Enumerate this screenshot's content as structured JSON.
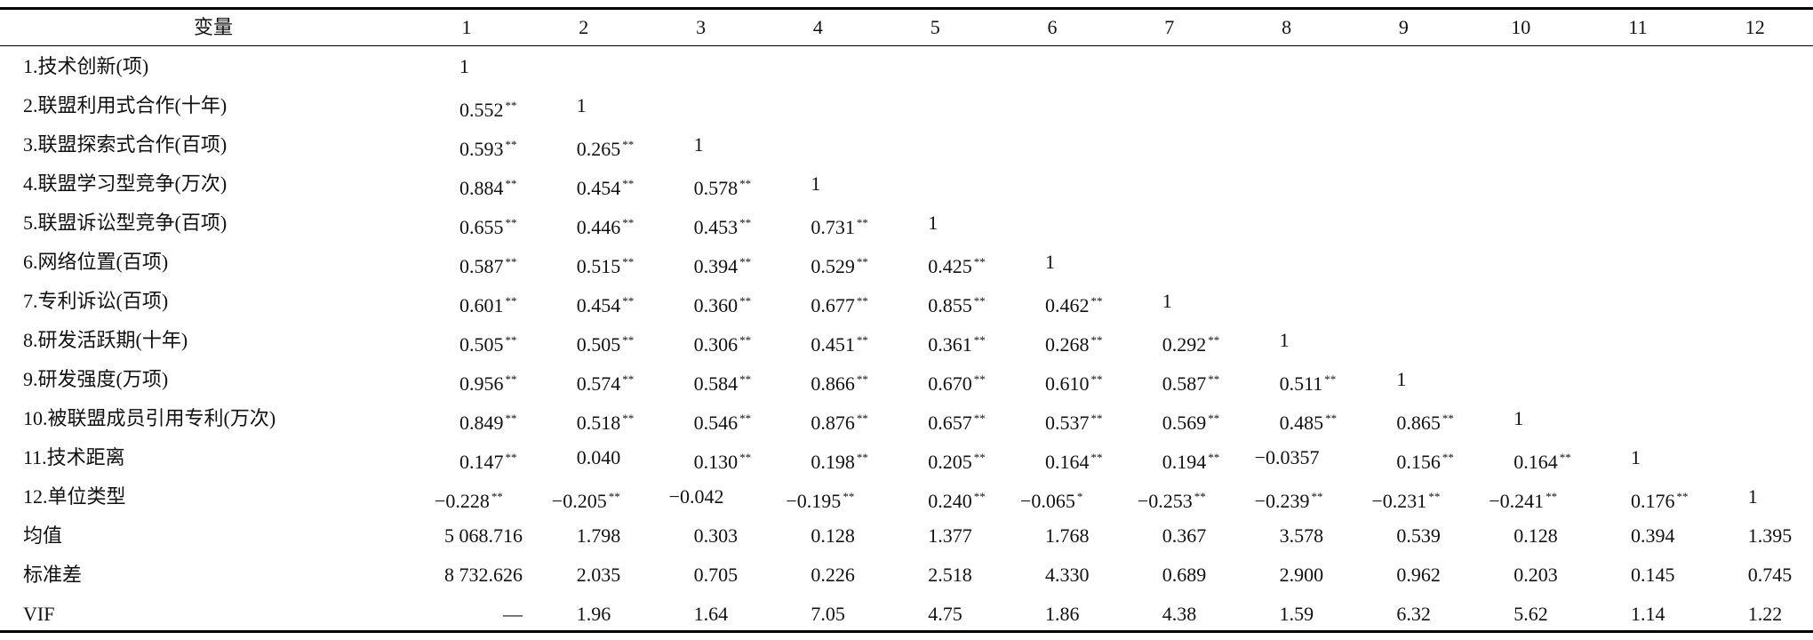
{
  "table": {
    "header": [
      "变量",
      "1",
      "2",
      "3",
      "4",
      "5",
      "6",
      "7",
      "8",
      "9",
      "10",
      "11",
      "12"
    ],
    "rows": [
      {
        "label": "1.技术创新(项)",
        "cells": [
          "1"
        ]
      },
      {
        "label": "2.联盟利用式合作(十年)",
        "cells": [
          {
            "v": "0.552",
            "sig": "**"
          },
          "1"
        ]
      },
      {
        "label": "3.联盟探索式合作(百项)",
        "cells": [
          {
            "v": "0.593",
            "sig": "**"
          },
          {
            "v": "0.265",
            "sig": "**"
          },
          "1"
        ]
      },
      {
        "label": "4.联盟学习型竞争(万次)",
        "cells": [
          {
            "v": "0.884",
            "sig": "**"
          },
          {
            "v": "0.454",
            "sig": "**"
          },
          {
            "v": "0.578",
            "sig": "**"
          },
          "1"
        ]
      },
      {
        "label": "5.联盟诉讼型竞争(百项)",
        "cells": [
          {
            "v": "0.655",
            "sig": "**"
          },
          {
            "v": "0.446",
            "sig": "**"
          },
          {
            "v": "0.453",
            "sig": "**"
          },
          {
            "v": "0.731",
            "sig": "**"
          },
          "1"
        ]
      },
      {
        "label": "6.网络位置(百项)",
        "cells": [
          {
            "v": "0.587",
            "sig": "**"
          },
          {
            "v": "0.515",
            "sig": "**"
          },
          {
            "v": "0.394",
            "sig": "**"
          },
          {
            "v": "0.529",
            "sig": "**"
          },
          {
            "v": "0.425",
            "sig": "**"
          },
          "1"
        ]
      },
      {
        "label": "7.专利诉讼(百项)",
        "cells": [
          {
            "v": "0.601",
            "sig": "**"
          },
          {
            "v": "0.454",
            "sig": "**"
          },
          {
            "v": "0.360",
            "sig": "**"
          },
          {
            "v": "0.677",
            "sig": "**"
          },
          {
            "v": "0.855",
            "sig": "**"
          },
          {
            "v": "0.462",
            "sig": "**"
          },
          "1"
        ]
      },
      {
        "label": "8.研发活跃期(十年)",
        "cells": [
          {
            "v": "0.505",
            "sig": "**"
          },
          {
            "v": "0.505",
            "sig": "**"
          },
          {
            "v": "0.306",
            "sig": "**"
          },
          {
            "v": "0.451",
            "sig": "**"
          },
          {
            "v": "0.361",
            "sig": "**"
          },
          {
            "v": "0.268",
            "sig": "**"
          },
          {
            "v": "0.292",
            "sig": "**"
          },
          "1"
        ]
      },
      {
        "label": "9.研发强度(万项)",
        "cells": [
          {
            "v": "0.956",
            "sig": "**"
          },
          {
            "v": "0.574",
            "sig": "**"
          },
          {
            "v": "0.584",
            "sig": "**"
          },
          {
            "v": "0.866",
            "sig": "**"
          },
          {
            "v": "0.670",
            "sig": "**"
          },
          {
            "v": "0.610",
            "sig": "**"
          },
          {
            "v": "0.587",
            "sig": "**"
          },
          {
            "v": "0.511",
            "sig": "**"
          },
          "1"
        ]
      },
      {
        "label": "10.被联盟成员引用专利(万次)",
        "cells": [
          {
            "v": "0.849",
            "sig": "**"
          },
          {
            "v": "0.518",
            "sig": "**"
          },
          {
            "v": "0.546",
            "sig": "**"
          },
          {
            "v": "0.876",
            "sig": "**"
          },
          {
            "v": "0.657",
            "sig": "**"
          },
          {
            "v": "0.537",
            "sig": "**"
          },
          {
            "v": "0.569",
            "sig": "**"
          },
          {
            "v": "0.485",
            "sig": "**"
          },
          {
            "v": "0.865",
            "sig": "**"
          },
          "1"
        ]
      },
      {
        "label": "11.技术距离",
        "cells": [
          {
            "v": "0.147",
            "sig": "**"
          },
          "0.040",
          {
            "v": "0.130",
            "sig": "**"
          },
          {
            "v": "0.198",
            "sig": "**"
          },
          {
            "v": "0.205",
            "sig": "**"
          },
          {
            "v": "0.164",
            "sig": "**"
          },
          {
            "v": "0.194",
            "sig": "**"
          },
          "−0.0357",
          {
            "v": "0.156",
            "sig": "**"
          },
          {
            "v": "0.164",
            "sig": "**"
          },
          "1"
        ]
      },
      {
        "label": "12.单位类型",
        "cells": [
          {
            "v": "−0.228",
            "sig": "**"
          },
          {
            "v": "−0.205",
            "sig": "**"
          },
          "−0.042",
          {
            "v": "−0.195",
            "sig": "**"
          },
          {
            "v": "0.240",
            "sig": "**"
          },
          {
            "v": "−0.065",
            "sig": "*"
          },
          {
            "v": "−0.253",
            "sig": "**"
          },
          {
            "v": "−0.239",
            "sig": "**"
          },
          {
            "v": "−0.231",
            "sig": "**"
          },
          {
            "v": "−0.241",
            "sig": "**"
          },
          {
            "v": "0.176",
            "sig": "**"
          },
          "1"
        ]
      }
    ],
    "stats": [
      {
        "label": "均值",
        "cells": [
          "5 068.716",
          "1.798",
          "0.303",
          "0.128",
          "1.377",
          "1.768",
          "0.367",
          "3.578",
          "0.539",
          "0.128",
          "0.394",
          "1.395"
        ]
      },
      {
        "label": "标准差",
        "cells": [
          "8 732.626",
          "2.035",
          "0.705",
          "0.226",
          "2.518",
          "4.330",
          "0.689",
          "2.900",
          "0.962",
          "0.203",
          "0.145",
          "0.745"
        ]
      },
      {
        "label": "VIF",
        "cells": [
          "—",
          "1.96",
          "1.64",
          "7.05",
          "4.75",
          "1.86",
          "4.38",
          "1.59",
          "6.32",
          "5.62",
          "1.14",
          "1.22"
        ]
      }
    ]
  }
}
